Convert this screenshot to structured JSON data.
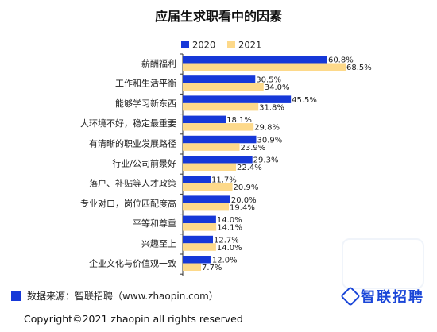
{
  "chart_data": {
    "type": "bar",
    "orientation": "horizontal",
    "title": "应届生求职看中的因素",
    "categories": [
      "薪酬福利",
      "工作和生活平衡",
      "能够学习新东西",
      "大环境不好，稳定最重要",
      "有清晰的职业发展路径",
      "行业/公司前景好",
      "落户、补贴等人才政策",
      "专业对口，岗位匹配度高",
      "平等和尊重",
      "兴趣至上",
      "企业文化与价值观一致"
    ],
    "series": [
      {
        "name": "2020",
        "color": "#1638d8",
        "values": [
          60.8,
          30.5,
          45.5,
          18.1,
          30.9,
          29.3,
          11.7,
          20.0,
          14.0,
          12.7,
          12.0
        ],
        "labels": [
          "60.8%",
          "30.5%",
          "45.5%",
          "18.1%",
          "30.9%",
          "29.3%",
          "11.7%",
          "20.0%",
          "14.0%",
          "12.7%",
          "12.0%"
        ]
      },
      {
        "name": "2021",
        "color": "#fdd98a",
        "values": [
          68.5,
          34.0,
          31.8,
          29.8,
          23.9,
          22.4,
          20.9,
          19.4,
          14.1,
          14.0,
          7.7
        ],
        "labels": [
          "68.5%",
          "34.0%",
          "31.8%",
          "29.8%",
          "23.9%",
          "22.4%",
          "20.9%",
          "19.4%",
          "14.1%",
          "14.0%",
          "7.7%"
        ]
      }
    ],
    "xlim": [
      0,
      75
    ],
    "grid": false,
    "legend": "top-left"
  },
  "footer": {
    "source": "数据来源：智联招聘（www.zhaopin.com）",
    "brand": "智联招聘",
    "copyright": "Copyright©2021 zhaopin all rights reserved"
  }
}
